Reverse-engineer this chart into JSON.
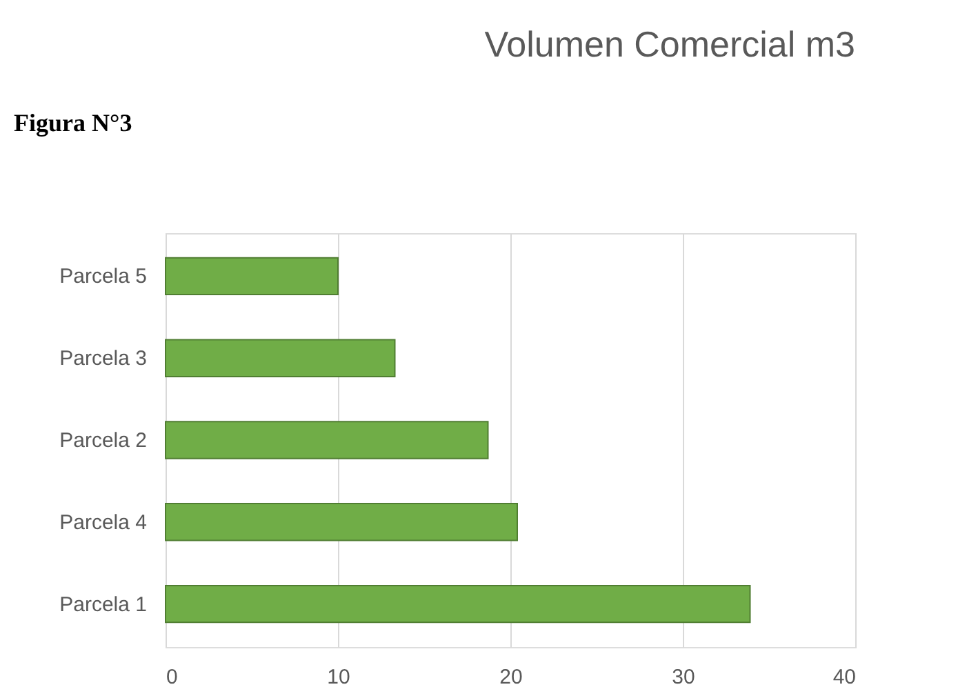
{
  "chart_data": {
    "type": "bar",
    "orientation": "horizontal",
    "title": "Volumen Comercial m3",
    "annotations": [
      "Figura N°3"
    ],
    "categories": [
      "Parcela 5",
      "Parcela 3",
      "Parcela 2",
      "Parcela 4",
      "Parcela 1"
    ],
    "values": [
      10.0,
      13.3,
      18.7,
      20.4,
      33.9
    ],
    "color": "#70ad47",
    "xlim": [
      0,
      40
    ],
    "xticks": [
      0,
      10,
      20,
      30,
      40
    ],
    "grid": "x",
    "legend": false
  }
}
